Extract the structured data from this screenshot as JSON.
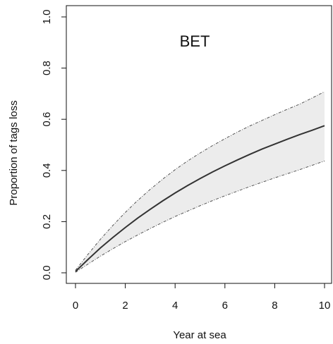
{
  "chart_data": {
    "type": "line",
    "title": "BET",
    "xlabel": "Year at sea",
    "ylabel": "Proportion of tags loss",
    "xlim": [
      0,
      10
    ],
    "ylim": [
      0,
      1
    ],
    "x_ticks": [
      0,
      2,
      4,
      6,
      8,
      10
    ],
    "y_ticks": [
      0.0,
      0.2,
      0.4,
      0.6,
      0.8,
      1.0
    ],
    "y_tick_labels": [
      "0.0",
      "0.2",
      "0.4",
      "0.6",
      "0.8",
      "1.0"
    ],
    "x": [
      0,
      0.5,
      1,
      1.5,
      2,
      2.5,
      3,
      3.5,
      4,
      4.5,
      5,
      5.5,
      6,
      6.5,
      7,
      7.5,
      8,
      8.5,
      9,
      9.5,
      10
    ],
    "series": [
      {
        "role": "estimate",
        "values": [
          0.005,
          0.052,
          0.097,
          0.138,
          0.177,
          0.214,
          0.248,
          0.281,
          0.312,
          0.341,
          0.368,
          0.394,
          0.418,
          0.441,
          0.463,
          0.484,
          0.503,
          0.522,
          0.54,
          0.557,
          0.575
        ]
      },
      {
        "role": "upper",
        "values": [
          0.01,
          0.072,
          0.131,
          0.185,
          0.236,
          0.283,
          0.326,
          0.366,
          0.403,
          0.437,
          0.468,
          0.497,
          0.524,
          0.55,
          0.574,
          0.596,
          0.618,
          0.639,
          0.659,
          0.683,
          0.708
        ]
      },
      {
        "role": "lower",
        "values": [
          0.002,
          0.034,
          0.065,
          0.094,
          0.122,
          0.148,
          0.173,
          0.197,
          0.22,
          0.241,
          0.262,
          0.282,
          0.301,
          0.319,
          0.337,
          0.354,
          0.371,
          0.387,
          0.403,
          0.42,
          0.437
        ]
      }
    ],
    "band_color": "#ececec",
    "line_color": "#333333",
    "bound_color": "#555555",
    "grid": false,
    "box": true
  }
}
